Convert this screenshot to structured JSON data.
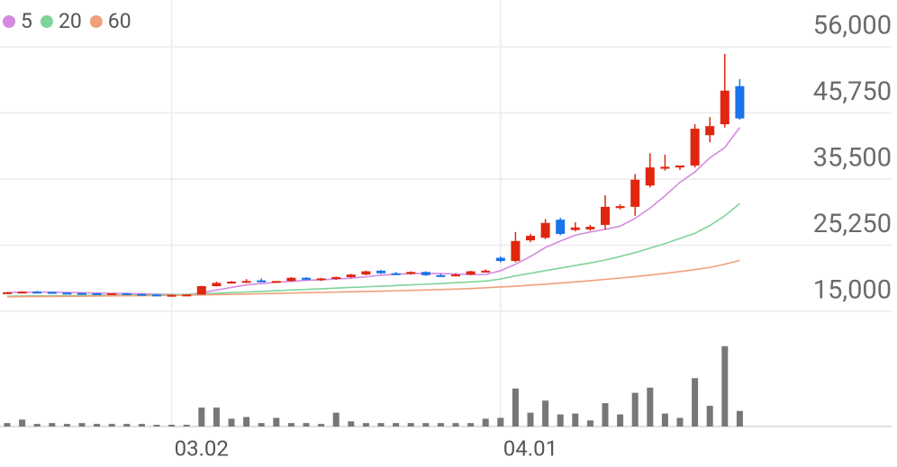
{
  "chart_data": {
    "type": "candlestick",
    "categories": [
      null,
      null,
      null,
      null,
      null,
      null,
      null,
      null,
      null,
      null,
      null,
      "03.02",
      null,
      null,
      null,
      null,
      null,
      null,
      null,
      null,
      null,
      null,
      null,
      null,
      null,
      null,
      null,
      null,
      null,
      null,
      null,
      null,
      null,
      "04.01",
      null,
      null,
      null,
      null,
      null,
      null,
      null,
      null,
      null,
      null,
      null,
      null,
      null,
      null,
      null,
      null
    ],
    "open": [
      17900,
      17950,
      18050,
      18000,
      17900,
      17850,
      17800,
      17750,
      17800,
      17700,
      17600,
      17500,
      17550,
      17600,
      18900,
      19400,
      19600,
      19800,
      19500,
      19700,
      20200,
      19900,
      20100,
      20300,
      20700,
      21300,
      20900,
      20800,
      21100,
      20600,
      20500,
      20700,
      21200,
      23300,
      22800,
      26000,
      26400,
      29200,
      27600,
      27700,
      28400,
      31000,
      31200,
      34500,
      37100,
      37300,
      37600,
      42300,
      44000,
      49900
    ],
    "high": [
      18000,
      18100,
      18150,
      18050,
      17950,
      17900,
      17850,
      17800,
      17850,
      17750,
      17650,
      17600,
      17650,
      18950,
      19600,
      19700,
      20000,
      20100,
      19700,
      20300,
      20300,
      20200,
      20400,
      20800,
      21300,
      21400,
      21100,
      21200,
      21200,
      20800,
      20900,
      21300,
      21500,
      23500,
      27300,
      27000,
      29300,
      29500,
      28800,
      28400,
      33000,
      31600,
      36300,
      39500,
      39300,
      37600,
      44000,
      45100,
      54900,
      51000
    ],
    "low": [
      17800,
      17900,
      17950,
      17850,
      17800,
      17750,
      17700,
      17650,
      17650,
      17550,
      17400,
      17450,
      17500,
      17550,
      18850,
      19300,
      19400,
      19600,
      19400,
      19600,
      19800,
      19700,
      19900,
      20200,
      20600,
      20800,
      20700,
      20700,
      20500,
      20400,
      20400,
      20600,
      21000,
      22600,
      22600,
      25700,
      26200,
      26800,
      27400,
      27500,
      27700,
      30800,
      29800,
      34200,
      36800,
      36900,
      37300,
      41200,
      43500,
      44700
    ],
    "close": [
      17950,
      18050,
      18000,
      17900,
      17850,
      17800,
      17750,
      17800,
      17700,
      17600,
      17500,
      17550,
      17600,
      18900,
      19400,
      19600,
      19700,
      19500,
      19700,
      20200,
      19900,
      20100,
      20300,
      20700,
      21200,
      20900,
      20800,
      21100,
      20600,
      20500,
      20700,
      21200,
      21300,
      22800,
      25900,
      26700,
      28700,
      27000,
      28000,
      28100,
      31200,
      31300,
      35400,
      37300,
      37400,
      37600,
      43300,
      43700,
      49200,
      44900
    ],
    "up_color": "#e0260f",
    "down_color": "#1a73e8",
    "series": [
      {
        "name": "5",
        "color": "#d58ae0",
        "values": [
          17900,
          17950,
          17980,
          17970,
          17930,
          17880,
          17830,
          17790,
          17760,
          17720,
          17660,
          17620,
          17570,
          17870,
          18300,
          18700,
          19100,
          19300,
          19500,
          19650,
          19800,
          19900,
          20000,
          20150,
          20350,
          20600,
          20750,
          20850,
          20900,
          20850,
          20800,
          20700,
          20700,
          21300,
          22300,
          23500,
          24900,
          25900,
          26800,
          27300,
          27700,
          28200,
          29400,
          31000,
          32900,
          35000,
          36600,
          38800,
          40400,
          43500
        ]
      },
      {
        "name": "20",
        "color": "#7fd49a",
        "values": [
          17350,
          17380,
          17400,
          17420,
          17440,
          17460,
          17480,
          17500,
          17520,
          17540,
          17560,
          17590,
          17620,
          17700,
          17800,
          17900,
          18000,
          18100,
          18200,
          18300,
          18400,
          18500,
          18600,
          18700,
          18800,
          18900,
          19000,
          19100,
          19200,
          19320,
          19440,
          19560,
          19700,
          20000,
          20500,
          20900,
          21300,
          21700,
          22100,
          22500,
          22950,
          23500,
          24100,
          24800,
          25500,
          26300,
          27100,
          28300,
          29800,
          31700
        ]
      },
      {
        "name": "60",
        "color": "#f0a07c",
        "values": [
          17250,
          17270,
          17290,
          17310,
          17330,
          17350,
          17370,
          17390,
          17410,
          17430,
          17450,
          17480,
          17510,
          17550,
          17590,
          17630,
          17680,
          17730,
          17780,
          17830,
          17880,
          17930,
          17980,
          18030,
          18080,
          18130,
          18190,
          18250,
          18310,
          18380,
          18450,
          18530,
          18650,
          18770,
          18900,
          19050,
          19210,
          19380,
          19560,
          19750,
          19950,
          20160,
          20380,
          20620,
          20880,
          21160,
          21460,
          21800,
          22300,
          22900
        ]
      }
    ],
    "volume": [
      4,
      8,
      3,
      4,
      3,
      4,
      3,
      3,
      3,
      3,
      2,
      2,
      2,
      22,
      22,
      9,
      11,
      4,
      10,
      4,
      4,
      3,
      16,
      6,
      4,
      4,
      4,
      4,
      4,
      4,
      4,
      4,
      9,
      10,
      44,
      16,
      30,
      14,
      15,
      7,
      27,
      14,
      39,
      45,
      15,
      10,
      56,
      24,
      93,
      18
    ],
    "volume_color": "#777777",
    "volume_ylim": [
      0,
      100
    ],
    "ylim": [
      15000,
      56000
    ],
    "yticks": [
      {
        "value": 56000,
        "label": "56,000"
      },
      {
        "value": 45750,
        "label": "45,750"
      },
      {
        "value": 35500,
        "label": "35,500"
      },
      {
        "value": 25250,
        "label": "25,250"
      },
      {
        "value": 15000,
        "label": "15,000"
      }
    ],
    "grid": true
  }
}
